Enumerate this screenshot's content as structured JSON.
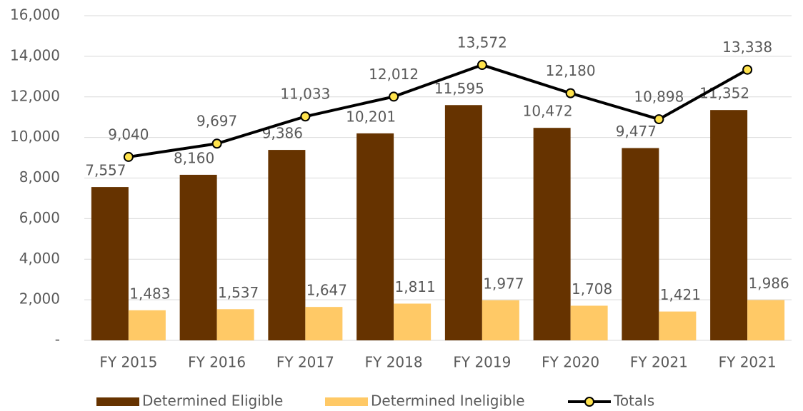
{
  "chart_data": {
    "type": "bar",
    "categories": [
      "FY 2015",
      "FY 2016",
      "FY 2017",
      "FY 2018",
      "FY 2019",
      "FY 2020",
      "FY 2021",
      "FY 2021"
    ],
    "series": [
      {
        "name": "Determined Eligible",
        "color": "#663300",
        "values": [
          7557,
          8160,
          9386,
          10201,
          11595,
          10472,
          9477,
          11352
        ],
        "value_labels": [
          "7,557",
          "8,160",
          "9,386",
          "10,201",
          "11,595",
          "10,472",
          "9,477",
          "11,352"
        ]
      },
      {
        "name": "Determined Ineligible",
        "color": "#FFC966",
        "values": [
          1483,
          1537,
          1647,
          1811,
          1977,
          1708,
          1421,
          1986
        ],
        "value_labels": [
          "1,483",
          "1,537",
          "1,647",
          "1,811",
          "1,977",
          "1,708",
          "1,421",
          "1,986"
        ]
      },
      {
        "name": "Totals",
        "type": "line",
        "color": "#000000",
        "marker_color": "#FFE34D",
        "values": [
          9040,
          9697,
          11033,
          12012,
          13572,
          12180,
          10898,
          13338
        ],
        "value_labels": [
          "9,040",
          "9,697",
          "11,033",
          "12,012",
          "13,572",
          "12,180",
          "10,898",
          "13,338"
        ]
      }
    ],
    "ylim": [
      0,
      16000
    ],
    "yticks": [
      {
        "value": 0,
        "label": "-"
      },
      {
        "value": 2000,
        "label": "2,000"
      },
      {
        "value": 4000,
        "label": "4,000"
      },
      {
        "value": 6000,
        "label": "6,000"
      },
      {
        "value": 8000,
        "label": "8,000"
      },
      {
        "value": 10000,
        "label": "10,000"
      },
      {
        "value": 12000,
        "label": "12,000"
      },
      {
        "value": 14000,
        "label": "14,000"
      },
      {
        "value": 16000,
        "label": "16,000"
      }
    ],
    "grid": true,
    "legend": "bottom"
  }
}
